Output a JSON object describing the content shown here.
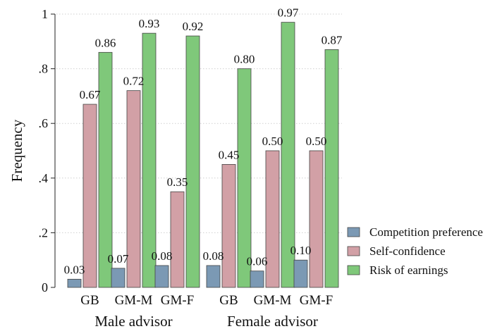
{
  "chart_data": {
    "type": "bar",
    "ylabel": "Frequency",
    "ylim": [
      0,
      1
    ],
    "yticks": [
      {
        "value": 0,
        "label": "0"
      },
      {
        "value": 0.2,
        "label": ".2"
      },
      {
        "value": 0.4,
        "label": ".4"
      },
      {
        "value": 0.6,
        "label": ".6"
      },
      {
        "value": 0.8,
        "label": ".8"
      },
      {
        "value": 1,
        "label": "1"
      }
    ],
    "grid": true,
    "legend_position": "right",
    "groups": [
      {
        "label": "Male advisor",
        "categories": [
          "GB",
          "GM-M",
          "GM-F"
        ]
      },
      {
        "label": "Female advisor",
        "categories": [
          "GB",
          "GM-M",
          "GM-F"
        ]
      }
    ],
    "series": [
      {
        "name": "Competition preference",
        "color": "#7b99b4",
        "values": [
          0.03,
          0.07,
          0.08,
          0.08,
          0.06,
          0.1
        ],
        "labels": [
          "0.03",
          "0.07",
          "0.08",
          "0.08",
          "0.06",
          "0.10"
        ]
      },
      {
        "name": "Self-confidence",
        "color": "#d2a0a6",
        "values": [
          0.67,
          0.72,
          0.35,
          0.45,
          0.5,
          0.5
        ],
        "labels": [
          "0.67",
          "0.72",
          "0.35",
          "0.45",
          "0.50",
          "0.50"
        ]
      },
      {
        "name": "Risk of earnings",
        "color": "#7fc87a",
        "values": [
          0.86,
          0.93,
          0.92,
          0.8,
          0.97,
          0.87
        ],
        "labels": [
          "0.86",
          "0.93",
          "0.92",
          "0.80",
          "0.97",
          "0.87"
        ]
      }
    ]
  }
}
